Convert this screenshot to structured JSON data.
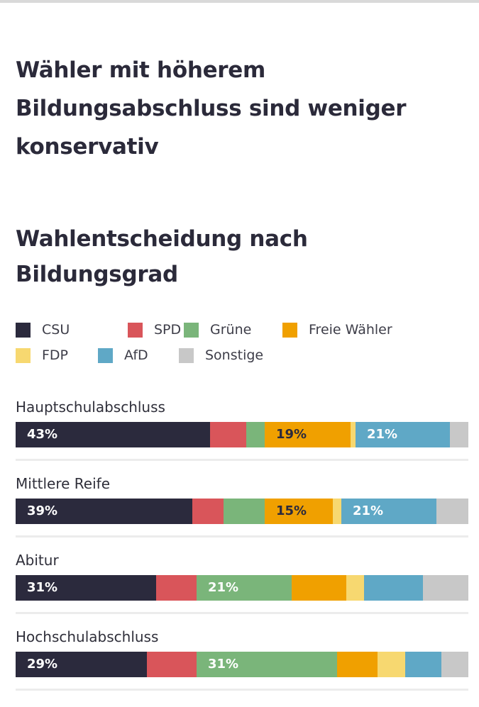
{
  "headline": "Wähler mit höherem Bildungsabschluss sind weniger konservativ",
  "chart_data": {
    "type": "bar",
    "stacked": true,
    "orientation": "horizontal",
    "title": "Wahlentscheidung nach Bildungsgrad",
    "unit": "%",
    "legend_position": "top",
    "categories": [
      "Hauptschulabschluss",
      "Mittlere Reife",
      "Abitur",
      "Hochschulabschluss"
    ],
    "series": [
      {
        "name": "CSU",
        "color": "#2b2a3d",
        "values": [
          43,
          39,
          31,
          29
        ]
      },
      {
        "name": "SPD",
        "color": "#d9555a",
        "values": [
          8,
          7,
          9,
          11
        ]
      },
      {
        "name": "Grüne",
        "color": "#7ab57a",
        "values": [
          4,
          9,
          21,
          31
        ]
      },
      {
        "name": "Freie Wähler",
        "color": "#f0a000",
        "values": [
          19,
          15,
          12,
          9
        ]
      },
      {
        "name": "FDP",
        "color": "#f7d870",
        "values": [
          1,
          2,
          4,
          6
        ]
      },
      {
        "name": "AfD",
        "color": "#5fa8c6",
        "values": [
          21,
          21,
          13,
          8
        ]
      },
      {
        "name": "Sonstige",
        "color": "#c8c8c8",
        "values": [
          4,
          7,
          10,
          6
        ]
      }
    ],
    "data_labels": [
      [
        "43%",
        "",
        "",
        "19%",
        "",
        "21%",
        ""
      ],
      [
        "39%",
        "",
        "",
        "15%",
        "",
        "21%",
        ""
      ],
      [
        "31%",
        "",
        "21%",
        "",
        "",
        "",
        ""
      ],
      [
        "29%",
        "",
        "31%",
        "",
        "",
        "",
        ""
      ]
    ]
  }
}
